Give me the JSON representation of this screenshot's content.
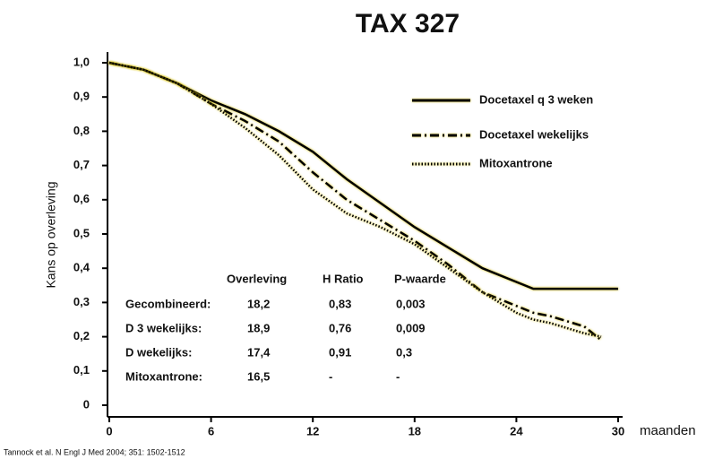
{
  "chart_data": {
    "type": "line",
    "title": "TAX 327",
    "y_label": "Kans op overleving",
    "x_label": "maanden",
    "source": "Tannock et al. N Engl J Med 2004; 351: 1502-1512",
    "x": [
      0,
      2,
      4,
      6,
      8,
      10,
      12,
      14,
      16,
      18,
      20,
      22,
      24,
      25,
      26,
      28,
      29,
      30
    ],
    "series": [
      {
        "name": "Docetaxel q 3 weken",
        "color": "#000000",
        "dash": "solid",
        "values": [
          1.0,
          0.98,
          0.94,
          0.89,
          0.85,
          0.8,
          0.74,
          0.66,
          0.59,
          0.52,
          0.46,
          0.4,
          0.36,
          0.34,
          0.34,
          0.34,
          0.34,
          0.34
        ]
      },
      {
        "name": "Docetaxel wekelijks",
        "color": "#000000",
        "dash": "dashdot",
        "values": [
          1.0,
          0.98,
          0.94,
          0.88,
          0.83,
          0.77,
          0.68,
          0.6,
          0.54,
          0.48,
          0.41,
          0.33,
          0.29,
          0.27,
          0.26,
          0.23,
          0.19,
          null
        ]
      },
      {
        "name": "Mitoxantrone",
        "color": "#000000",
        "dash": "dotted",
        "values": [
          1.0,
          0.98,
          0.94,
          0.88,
          0.81,
          0.73,
          0.63,
          0.56,
          0.52,
          0.47,
          0.4,
          0.33,
          0.27,
          0.25,
          0.24,
          0.21,
          0.2,
          null
        ]
      }
    ],
    "xlim": [
      0,
      30
    ],
    "xticks": [
      0,
      6,
      12,
      18,
      24,
      30
    ],
    "ylim": [
      0,
      1
    ],
    "yticks": [
      0,
      {
        "value": 0.1,
        "label": "0,1"
      },
      {
        "value": 0.2,
        "label": "0,2"
      },
      {
        "value": 0.3,
        "label": "0,3"
      },
      {
        "value": 0.4,
        "label": "0,4"
      },
      {
        "value": 0.5,
        "label": "0,5"
      },
      {
        "value": 0.6,
        "label": "0,6"
      },
      {
        "value": 0.7,
        "label": "0,7"
      },
      {
        "value": 0.8,
        "label": "0,8"
      },
      {
        "value": 0.9,
        "label": "0,9"
      },
      {
        "value": 1.0,
        "label": "1,0"
      }
    ],
    "grid": false,
    "legend": "upper right",
    "table": {
      "columns": [
        "Overleving",
        "H Ratio",
        "P-waarde"
      ],
      "rows": [
        [
          "Gecombineerd:",
          "18,2",
          "0,83",
          "0,003"
        ],
        [
          "D 3 wekelijks:",
          "18,9",
          "0,76",
          "0,009"
        ],
        [
          "D wekelijks:",
          "17,4",
          "0,91",
          "0,3"
        ],
        [
          "Mitoxantrone:",
          "16,5",
          "-",
          "-"
        ]
      ]
    }
  }
}
